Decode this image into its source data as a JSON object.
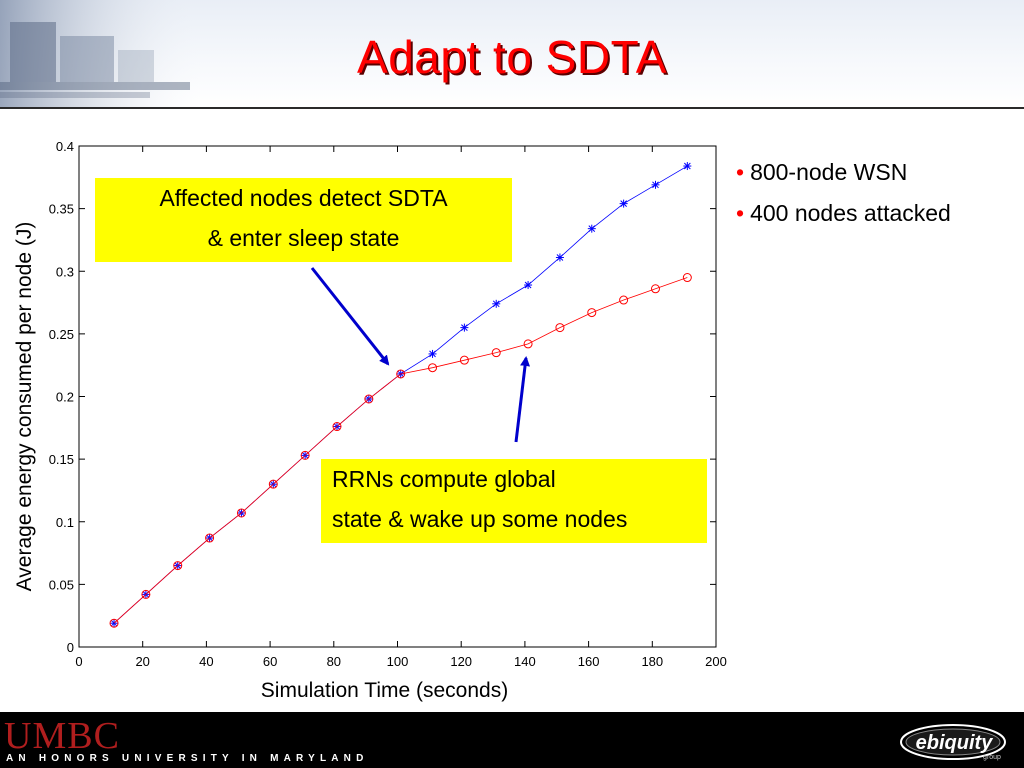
{
  "slide": {
    "title": "Adapt to SDTA",
    "bullets": [
      "800-node WSN",
      "400 nodes attacked"
    ],
    "callouts": [
      {
        "lines": [
          "Affected nodes detect SDTA",
          "& enter sleep state"
        ]
      },
      {
        "lines": [
          "RRNs compute global",
          "state & wake up some nodes"
        ]
      }
    ],
    "footer": {
      "umbc_logo": "UMBC",
      "umbc_tagline": "AN HONORS UNIVERSITY IN MARYLAND",
      "ebiquity_logo": "ebiquity",
      "ebiquity_sub": "group"
    }
  },
  "colors": {
    "title": "#ff0000",
    "callout": "#ffff00",
    "arrow": "#0000cc",
    "series_blue": "#0000ff",
    "series_red": "#ff0000"
  },
  "chart_data": {
    "type": "line",
    "xlabel": "Simulation Time (seconds)",
    "ylabel": "Average energy consumed per node (J)",
    "xlim": [
      0,
      200
    ],
    "ylim": [
      0,
      0.4
    ],
    "xticks": [
      "0",
      "20",
      "40",
      "60",
      "80",
      "100",
      "120",
      "140",
      "160",
      "180",
      "200"
    ],
    "yticks": [
      "0",
      "0.05",
      "0.1",
      "0.15",
      "0.2",
      "0.25",
      "0.3",
      "0.35",
      "0.4"
    ],
    "grid": false,
    "series": [
      {
        "marker": "star",
        "color": "#0000ff",
        "x": [
          11,
          21,
          31,
          41,
          51,
          61,
          71,
          81,
          91,
          101,
          111,
          121,
          131,
          141,
          151,
          161,
          171,
          181,
          191
        ],
        "y": [
          0.019,
          0.042,
          0.065,
          0.087,
          0.107,
          0.13,
          0.153,
          0.176,
          0.198,
          0.218,
          0.234,
          0.255,
          0.274,
          0.289,
          0.311,
          0.334,
          0.354,
          0.369,
          0.384
        ]
      },
      {
        "marker": "circle",
        "color": "#ff0000",
        "x": [
          11,
          21,
          31,
          41,
          51,
          61,
          71,
          81,
          91,
          101,
          111,
          121,
          131,
          141,
          151,
          161,
          171,
          181,
          191
        ],
        "y": [
          0.019,
          0.042,
          0.065,
          0.087,
          0.107,
          0.13,
          0.153,
          0.176,
          0.198,
          0.218,
          0.223,
          0.229,
          0.235,
          0.242,
          0.255,
          0.267,
          0.277,
          0.286,
          0.295
        ]
      }
    ]
  }
}
